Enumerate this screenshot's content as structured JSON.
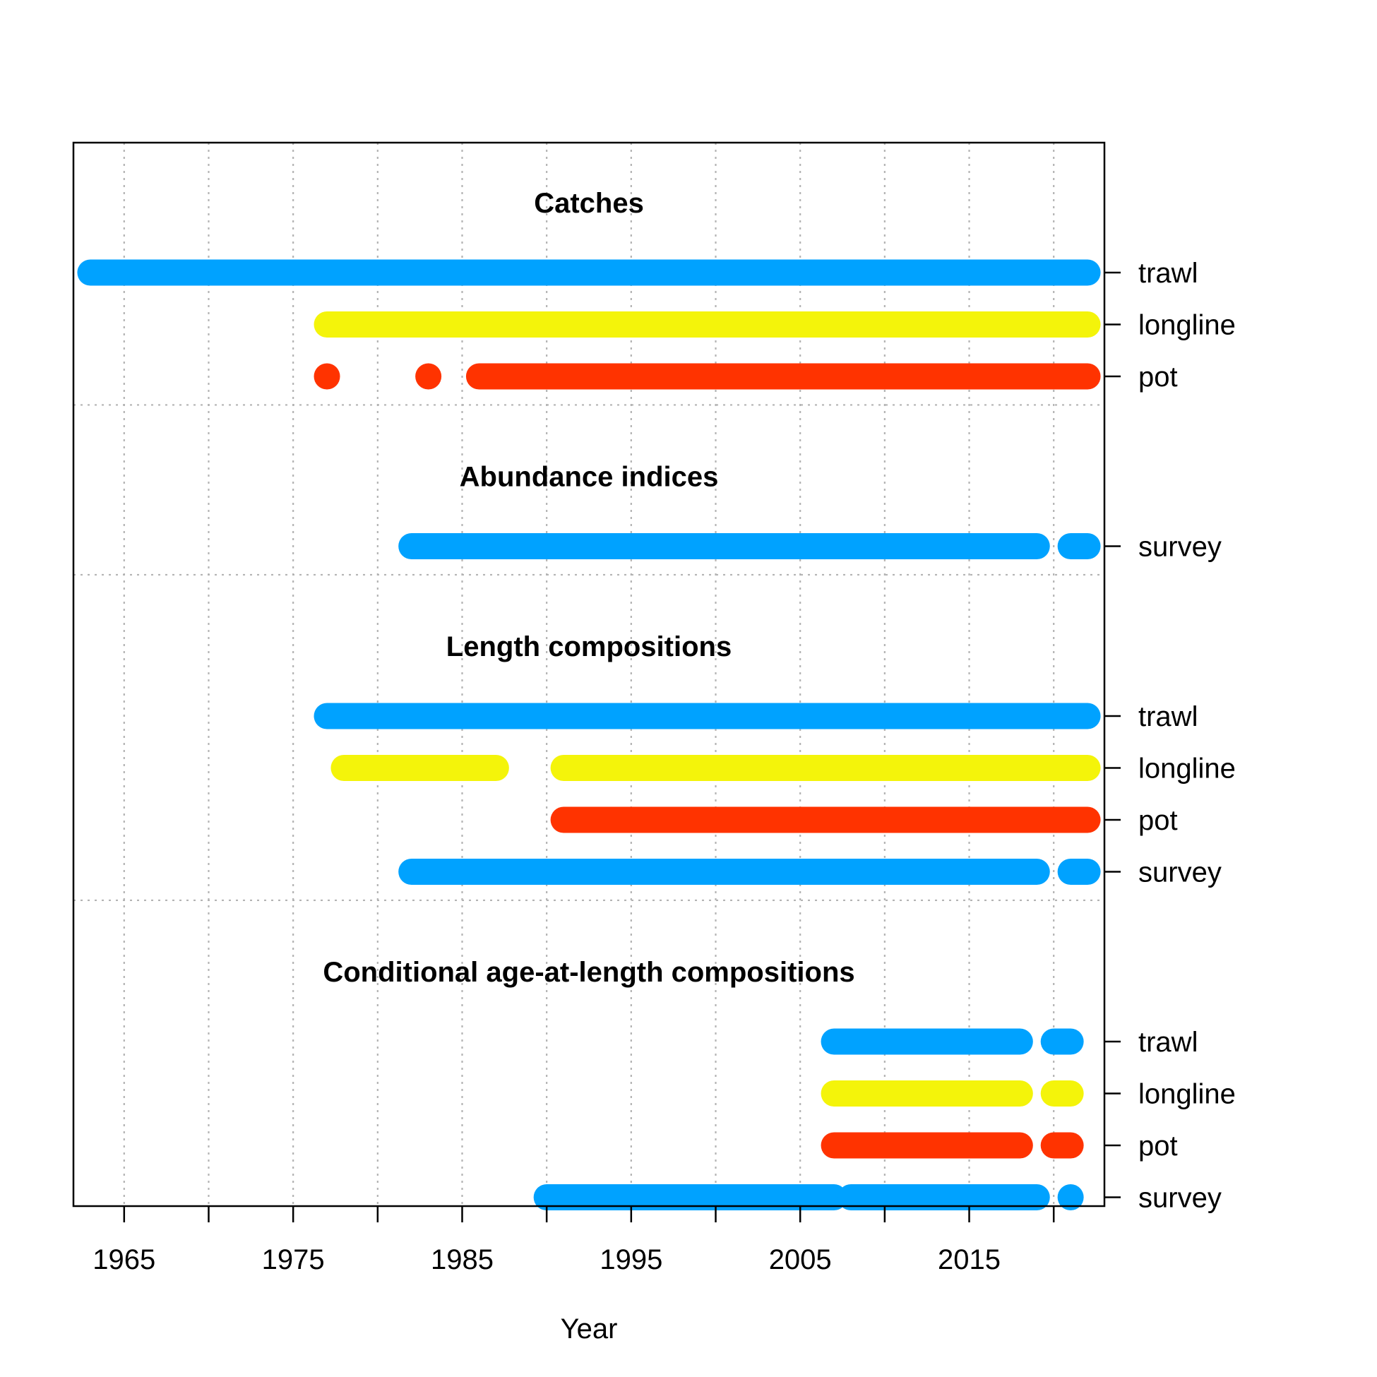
{
  "chart_data": {
    "type": "timeline",
    "xlabel": "Year",
    "xlim": [
      1962,
      2023
    ],
    "xticks": [
      1965,
      1970,
      1975,
      1980,
      1985,
      1990,
      1995,
      2000,
      2005,
      2010,
      2015,
      2020
    ],
    "xtick_labels": [
      "1965",
      "",
      "1975",
      "",
      "1985",
      "",
      "1995",
      "",
      "2005",
      "",
      "2015",
      ""
    ],
    "grid": true,
    "colors": {
      "trawl": "#00A2FF",
      "longline": "#F4F40A",
      "pot": "#FF3300",
      "survey": "#00A2FF"
    },
    "sections": [
      {
        "title": "Catches",
        "rows": [
          {
            "label": "trawl",
            "fleet": "trawl",
            "segments": [
              [
                1963,
                2022
              ]
            ]
          },
          {
            "label": "longline",
            "fleet": "longline",
            "segments": [
              [
                1977,
                2022
              ]
            ]
          },
          {
            "label": "pot",
            "fleet": "pot",
            "segments": [
              [
                1977,
                1977
              ],
              [
                1983,
                1983
              ],
              [
                1986,
                2022
              ]
            ]
          }
        ]
      },
      {
        "title": "Abundance indices",
        "rows": [
          {
            "label": "survey",
            "fleet": "survey",
            "segments": [
              [
                1982,
                2019
              ],
              [
                2021,
                2022
              ]
            ]
          }
        ]
      },
      {
        "title": "Length compositions",
        "rows": [
          {
            "label": "trawl",
            "fleet": "trawl",
            "segments": [
              [
                1977,
                2022
              ]
            ]
          },
          {
            "label": "longline",
            "fleet": "longline",
            "segments": [
              [
                1978,
                1987
              ],
              [
                1991,
                2022
              ]
            ]
          },
          {
            "label": "pot",
            "fleet": "pot",
            "segments": [
              [
                1991,
                2022
              ]
            ]
          },
          {
            "label": "survey",
            "fleet": "survey",
            "segments": [
              [
                1982,
                2019
              ],
              [
                2021,
                2022
              ]
            ]
          }
        ]
      },
      {
        "title": "Conditional age-at-length compositions",
        "rows": [
          {
            "label": "trawl",
            "fleet": "trawl",
            "segments": [
              [
                2007,
                2018
              ],
              [
                2020,
                2021
              ]
            ]
          },
          {
            "label": "longline",
            "fleet": "longline",
            "segments": [
              [
                2007,
                2018
              ],
              [
                2020,
                2021
              ]
            ]
          },
          {
            "label": "pot",
            "fleet": "pot",
            "segments": [
              [
                2007,
                2018
              ],
              [
                2020,
                2021
              ]
            ]
          },
          {
            "label": "survey",
            "fleet": "survey",
            "segments": [
              [
                1990,
                2007
              ],
              [
                2008,
                2019
              ],
              [
                2021,
                2021
              ]
            ]
          }
        ]
      }
    ]
  }
}
